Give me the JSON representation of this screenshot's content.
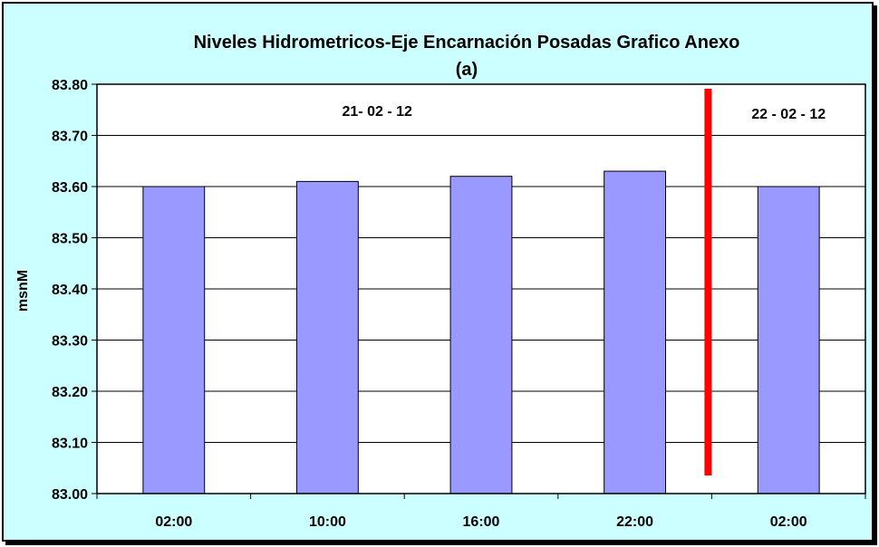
{
  "chart_data": {
    "type": "bar",
    "title": "Niveles Hidrometricos-Eje Encarnación Posadas Grafico Anexo",
    "subtitle": "(a)",
    "xlabel": "",
    "ylabel": "msnM",
    "categories": [
      "02:00",
      "10:00",
      "16:00",
      "22:00",
      "02:00"
    ],
    "values": [
      83.6,
      83.61,
      83.62,
      83.63,
      83.6
    ],
    "ylim": [
      83.0,
      83.8
    ],
    "yticks": [
      "83.00",
      "83.10",
      "83.20",
      "83.30",
      "83.40",
      "83.50",
      "83.60",
      "83.70",
      "83.80"
    ],
    "grid": true,
    "bar_color": "#9999ff",
    "background_color": "#ccffff",
    "plot_background_color": "#ffffff",
    "divider_color": "#ff0000",
    "annotations": [
      "21- 02 - 12",
      "22 - 02 - 12"
    ]
  }
}
